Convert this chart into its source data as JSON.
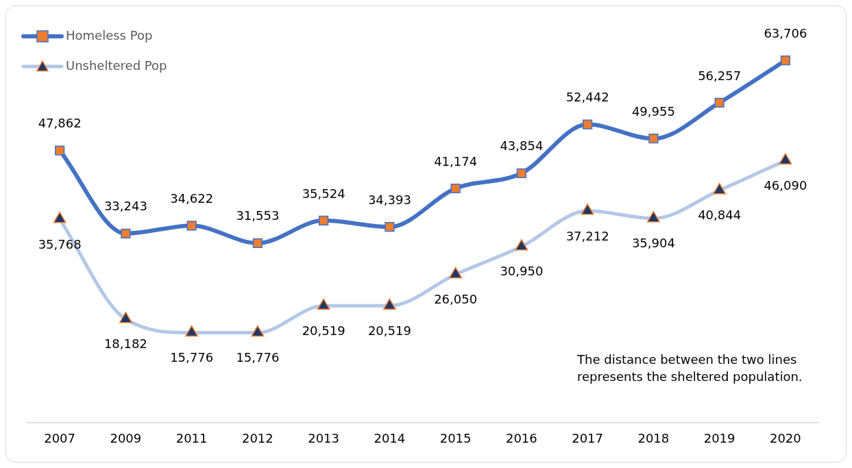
{
  "chart_data": {
    "type": "line",
    "categories": [
      "2007",
      "2009",
      "2011",
      "2012",
      "2013",
      "2014",
      "2015",
      "2016",
      "2017",
      "2018",
      "2019",
      "2020"
    ],
    "series": [
      {
        "name": "Homeless Pop",
        "color": "#4472c4",
        "marker": "square",
        "values": [
          47862,
          33243,
          34622,
          31553,
          35524,
          34393,
          41174,
          43854,
          52442,
          49955,
          56257,
          63706
        ],
        "value_labels": [
          "47,862",
          "33,243",
          "34,622",
          "31,553",
          "35,524",
          "34,393",
          "41,174",
          "43,854",
          "52,442",
          "49,955",
          "56,257",
          "63,706"
        ]
      },
      {
        "name": "Unsheltered Pop",
        "color": "#b4c7e7",
        "marker": "triangle",
        "values": [
          35768,
          18182,
          15776,
          15776,
          20519,
          20519,
          26050,
          30950,
          37212,
          35904,
          40844,
          46090
        ],
        "value_labels": [
          "35,768",
          "18,182",
          "15,776",
          "15,776",
          "20,519",
          "20,519",
          "26,050",
          "30,950",
          "37,212",
          "35,904",
          "40,844",
          "46,090"
        ]
      }
    ],
    "tick_labels": "x",
    "legend": "top left",
    "annotations": [
      "The distance between the two lines represents the sheltered population."
    ]
  }
}
